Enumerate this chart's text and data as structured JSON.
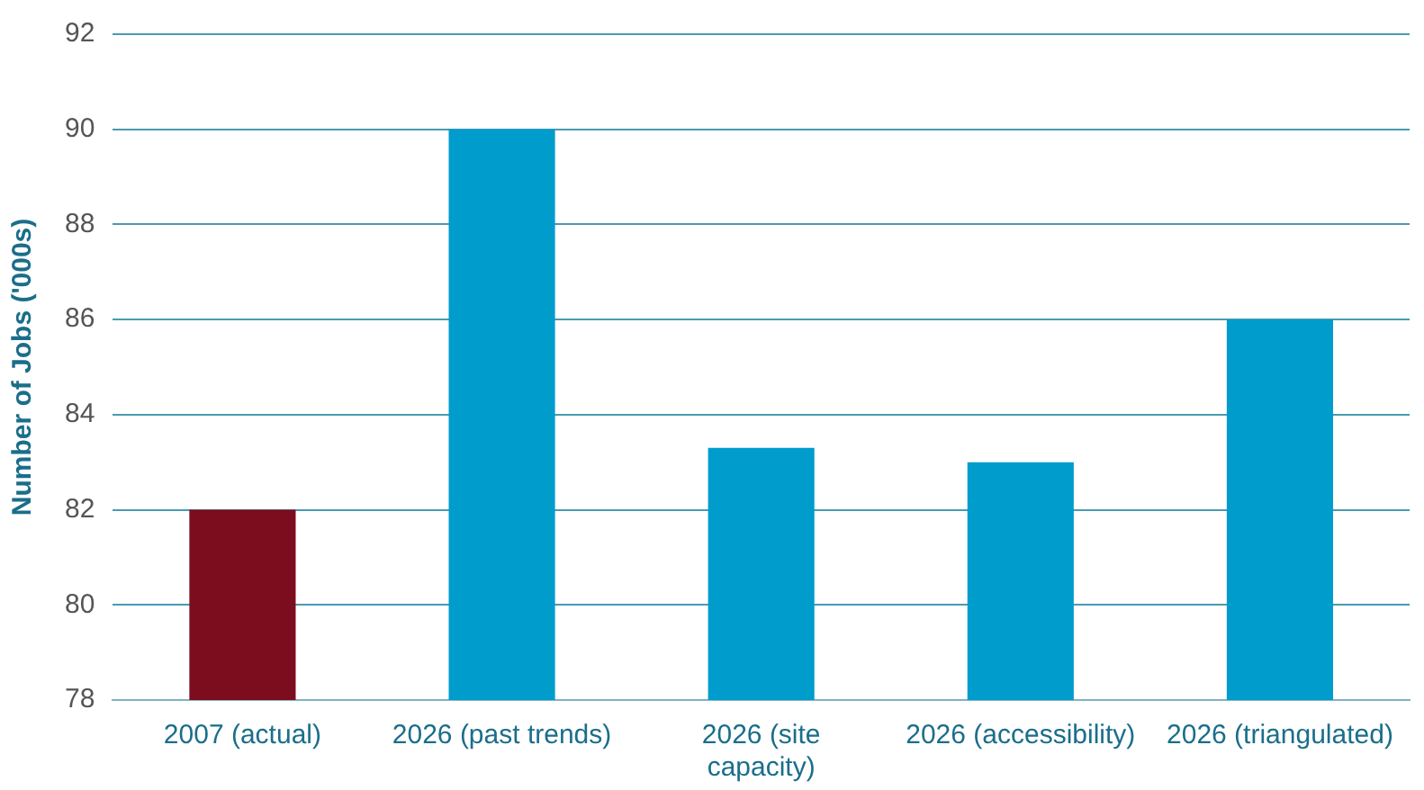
{
  "chart_data": {
    "type": "bar",
    "ylabel": "Number of Jobs ('000s)",
    "categories": [
      "2007 (actual)",
      "2026 (past trends)",
      "2026 (site capacity)",
      "2026 (accessibility)",
      "2026 (triangulated)"
    ],
    "values": [
      82,
      90,
      83.3,
      83,
      86
    ],
    "colors": [
      "#7b0d1e",
      "#009ccc",
      "#009ccc",
      "#009ccc",
      "#009ccc"
    ],
    "ylim": [
      78,
      92
    ],
    "yticks": [
      78,
      80,
      82,
      84,
      86,
      88,
      90,
      92
    ],
    "grid": "y",
    "legend": false
  }
}
